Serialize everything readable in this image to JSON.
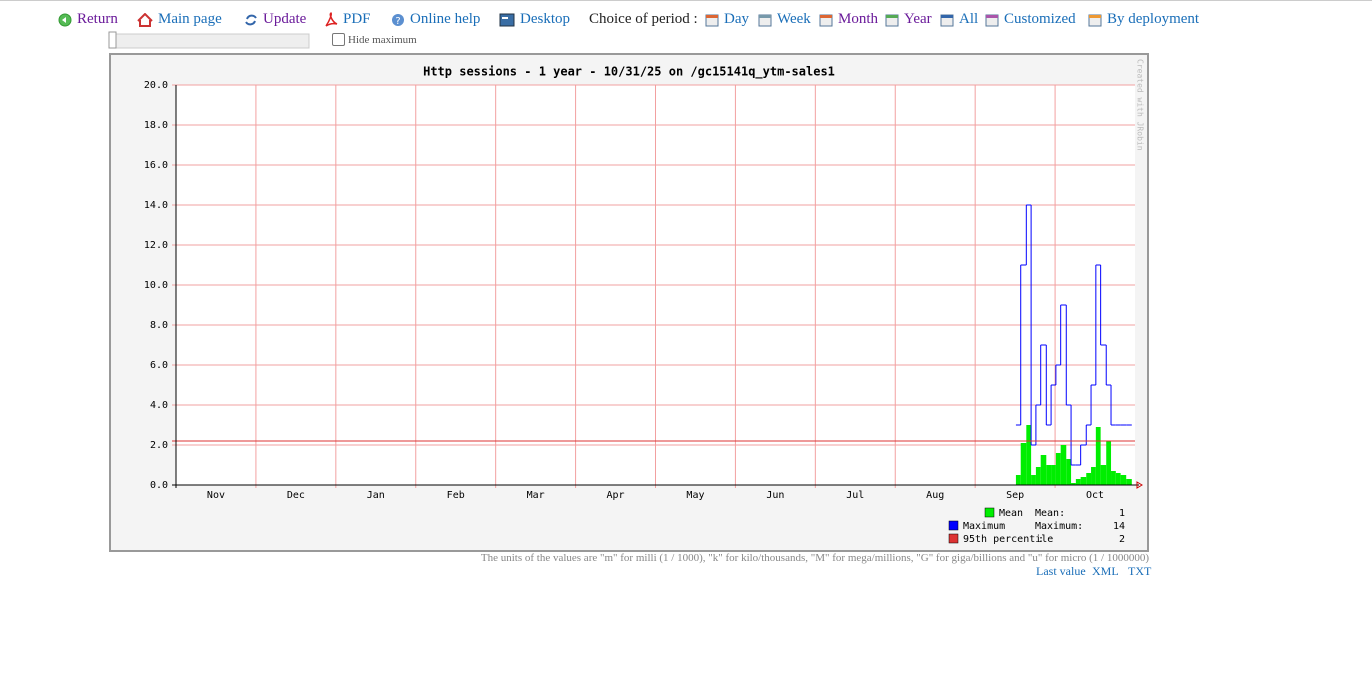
{
  "toolbar": {
    "return": "Return",
    "main_page": "Main page",
    "update": "Update",
    "pdf": "PDF",
    "online_help": "Online help",
    "desktop": "Desktop",
    "period_label": "Choice of period :",
    "day": "Day",
    "week": "Week",
    "month": "Month",
    "year": "Year",
    "all": "All",
    "customized": "Customized",
    "by_deployment": "By deployment"
  },
  "hide_maximum": "Hide maximum",
  "chart_data": {
    "type": "step",
    "title": "Http sessions - 1 year - 10/31/25 on /gc15141q_ytm-sales1",
    "watermark": "Created with JRobin",
    "xlim": [
      0,
      12
    ],
    "xticks": [
      {
        "value": 0.5,
        "label": "Nov"
      },
      {
        "value": 1.5,
        "label": "Dec"
      },
      {
        "value": 2.5,
        "label": "Jan"
      },
      {
        "value": 3.5,
        "label": "Feb"
      },
      {
        "value": 4.5,
        "label": "Mar"
      },
      {
        "value": 5.5,
        "label": "Apr"
      },
      {
        "value": 6.5,
        "label": "May"
      },
      {
        "value": 7.5,
        "label": "Jun"
      },
      {
        "value": 8.5,
        "label": "Jul"
      },
      {
        "value": 9.5,
        "label": "Aug"
      },
      {
        "value": 10.5,
        "label": "Sep"
      },
      {
        "value": 11.5,
        "label": "Oct"
      }
    ],
    "ylim": [
      0,
      20
    ],
    "yticks": [
      {
        "value": 0,
        "label": "0.0"
      },
      {
        "value": 2,
        "label": "2.0"
      },
      {
        "value": 4,
        "label": "4.0"
      },
      {
        "value": 6,
        "label": "6.0"
      },
      {
        "value": 8,
        "label": "8.0"
      },
      {
        "value": 10,
        "label": "10.0"
      },
      {
        "value": 12,
        "label": "12.0"
      },
      {
        "value": 14,
        "label": "14.0"
      },
      {
        "value": 16,
        "label": "16.0"
      },
      {
        "value": 18,
        "label": "18.0"
      },
      {
        "value": 20,
        "label": "20.0"
      }
    ],
    "grid": true,
    "x": [
      10.51,
      10.57,
      10.64,
      10.7,
      10.76,
      10.82,
      10.89,
      10.95,
      11.01,
      11.07,
      11.14,
      11.2,
      11.26,
      11.32,
      11.39,
      11.45,
      11.51,
      11.57,
      11.64,
      11.7,
      11.76,
      11.82,
      11.89
    ],
    "series": [
      {
        "name": "Mean",
        "color": "#00ee00",
        "style": "area",
        "stat_label": "Mean:",
        "stat": 1,
        "values": [
          0.5,
          2.1,
          3.0,
          0.5,
          0.9,
          1.5,
          1.0,
          1.0,
          1.6,
          2.0,
          1.3,
          0.1,
          0.3,
          0.4,
          0.6,
          0.9,
          2.9,
          1.0,
          2.2,
          0.7,
          0.6,
          0.5,
          0.3
        ]
      },
      {
        "name": "Maximum",
        "color": "#0000ff",
        "style": "step",
        "stat_label": "Maximum:",
        "stat": 14,
        "values": [
          3,
          11,
          14,
          2,
          4,
          7,
          3,
          5,
          6,
          9,
          4,
          1,
          1,
          2,
          3,
          5,
          11,
          7,
          5,
          3,
          3,
          3,
          3
        ]
      },
      {
        "name": "95th percentile",
        "color": "#dd3333",
        "style": "hline",
        "stat_label": ":",
        "stat": 2,
        "value": 2.2
      }
    ]
  },
  "footer": {
    "units_note": "The units of the values are \"m\" for milli (1 / 1000), \"k\" for kilo/thousands, \"M\" for mega/millions, \"G\" for giga/billions and \"u\" for micro (1 / 1000000)",
    "last_value": "Last value",
    "xml": "XML",
    "txt": "TXT"
  }
}
